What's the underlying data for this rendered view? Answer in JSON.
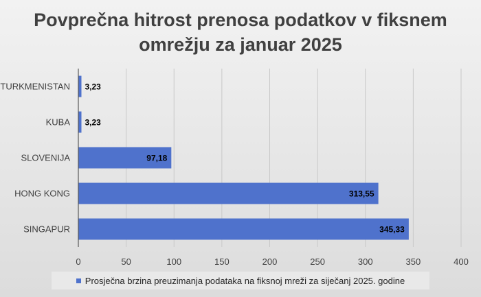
{
  "chart_data": {
    "type": "bar",
    "orientation": "horizontal",
    "title_lines": [
      "Povprečna hitrost prenosa podatkov v fiksnem",
      "omrežju za januar 2025"
    ],
    "categories": [
      "TURKMENISTAN",
      "KUBA",
      "SLOVENIJA",
      "HONG KONG",
      "SINGAPUR"
    ],
    "series": [
      {
        "name": "Prosječna brzina preuzimanja podataka na fiksnoj mreži za siječanj 2025. godine",
        "values": [
          3.23,
          3.23,
          97.18,
          313.55,
          345.33
        ],
        "labels": [
          "3,23",
          "3,23",
          "97,18",
          "313,55",
          "345,33"
        ],
        "color": "#4f72cc"
      }
    ],
    "xlim": [
      0,
      400
    ],
    "xticks": [
      0,
      50,
      100,
      150,
      200,
      250,
      300,
      350,
      400
    ],
    "xtick_labels": [
      "0",
      "50",
      "100",
      "150",
      "200",
      "250",
      "300",
      "350",
      "400"
    ],
    "grid": true,
    "legend_position": "bottom"
  }
}
